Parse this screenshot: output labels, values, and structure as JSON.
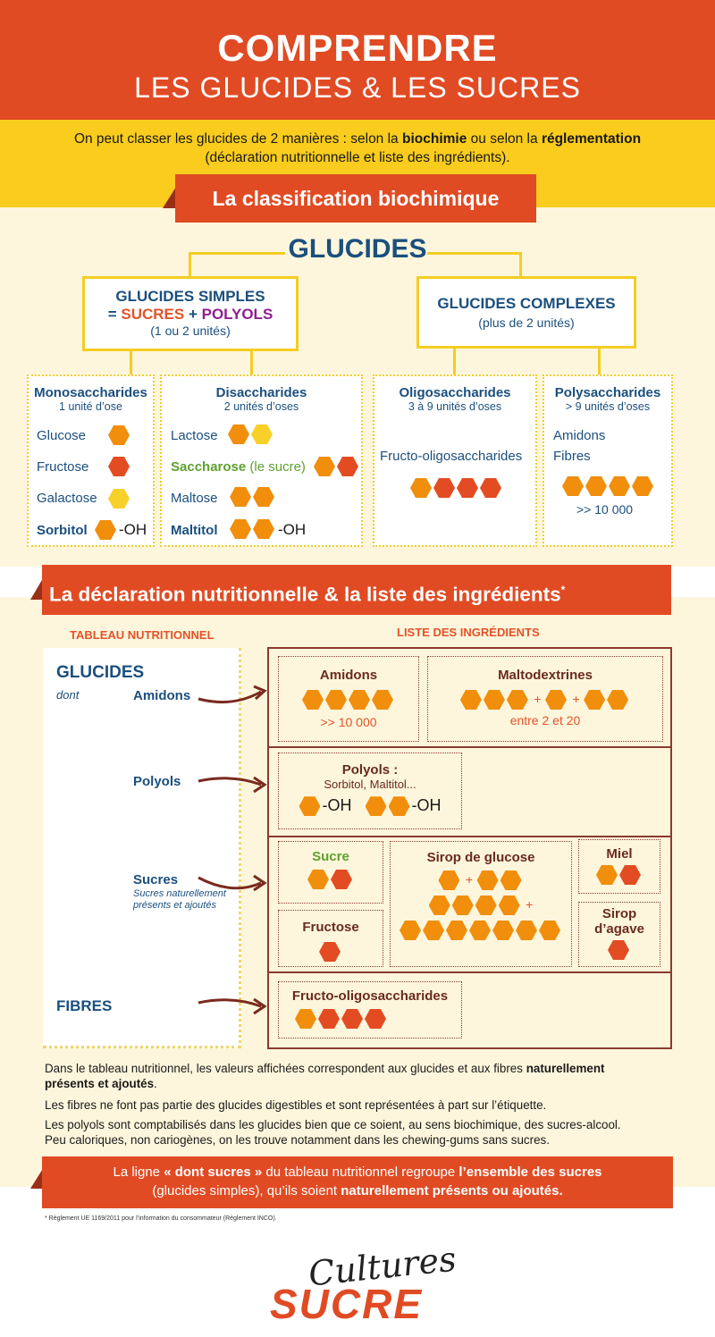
{
  "header": {
    "title": "COMPRENDRE",
    "subtitle": "LES GLUCIDES & LES SUCRES"
  },
  "intro": {
    "line1_pre": "On peut classer les glucides de 2 manières : selon la ",
    "line1_b1": "biochimie",
    "line1_mid": " ou selon la ",
    "line1_b2": "réglementation",
    "line2": "(déclaration nutritionnelle et liste des ingrédients)."
  },
  "section1": {
    "banner": "La classification biochimique",
    "root": "GLUCIDES",
    "simple": {
      "title": "GLUCIDES SIMPLES",
      "eq": "= ",
      "sucres": "SUCRES",
      "plus": " + ",
      "polyols": "POLYOLS",
      "sub": "(1 ou 2 unités)"
    },
    "complex": {
      "title": "GLUCIDES COMPLEXES",
      "sub": "(plus de 2 unités)"
    },
    "mono": {
      "title": "Monosaccharides",
      "sub": "1 unité d’ose",
      "items": [
        "Glucose",
        "Fructose",
        "Galactose",
        "Sorbitol"
      ],
      "oh": "-OH"
    },
    "di": {
      "title": "Disaccharides",
      "sub": "2 unités d’oses",
      "items": [
        "Lactose",
        "Saccharose",
        "Maltose",
        "Maltitol"
      ],
      "saccharose_note": " (le sucre)",
      "oh": "-OH"
    },
    "oligo": {
      "title": "Oligosaccharides",
      "sub": "3 à 9 unités d’oses",
      "items": [
        "Fructo-oligosaccharides"
      ]
    },
    "poly": {
      "title": "Polysaccharides",
      "sub": "> 9 unités d’oses",
      "items": [
        "Amidons",
        "Fibres"
      ],
      "count": ">> 10 000"
    }
  },
  "section2": {
    "banner": "La déclaration nutritionnelle & la liste des ingrédients",
    "banner_star": "*",
    "left_head": "TABLEAU NUTRITIONNEL",
    "right_head": "LISTE DES INGRÉDIENTS",
    "left": {
      "glucides": "GLUCIDES",
      "dont": "dont",
      "amidons": "Amidons",
      "polyols": "Polyols",
      "sucres": "Sucres",
      "sucres_note": "Sucres naturellement présents et ajoutés",
      "fibres": "FIBRES"
    },
    "right": {
      "amidons": {
        "title": "Amidons",
        "count": ">> 10 000"
      },
      "maltodextrines": {
        "title": "Maltodextrines",
        "plus": "+",
        "range": "entre 2 et 20"
      },
      "polyols": {
        "title": "Polyols :",
        "sub": "Sorbitol, Maltitol...",
        "oh": "-OH"
      },
      "sucre": {
        "title": "Sucre"
      },
      "fructose": {
        "title": "Fructose"
      },
      "sirop_glucose": {
        "title": "Sirop de glucose",
        "plus": "+"
      },
      "miel": {
        "title": "Miel"
      },
      "sirop_agave": {
        "title_line1": "Sirop",
        "title_line2": "d’agave"
      },
      "fos": {
        "title": "Fructo-oligosaccharides"
      }
    }
  },
  "paragraphs": {
    "p1_pre": "Dans le tableau nutritionnel, les valeurs affichées correspondent aux glucides et aux fibres ",
    "p1_b1": "naturellement",
    "p1_b2": "présents et ajoutés",
    "p1_end": ".",
    "p2": "Les fibres ne font pas partie des glucides digestibles et sont représentées à part sur l’étiquette.",
    "p3_l1": "Les polyols sont comptabilisés dans les glucides bien que ce soient, au sens biochimique, des sucres-alcool.",
    "p3_l2": "Peu caloriques, non cariogènes, on les trouve notamment dans les chewing-gums sans sucres."
  },
  "bottom_banner": {
    "pre": "La ligne ",
    "b1": "« dont sucres »",
    "mid": " du tableau nutritionnel regroupe ",
    "b2": "l’ensemble des sucres",
    "l2_pre": "(glucides simples), qu’ils soient ",
    "b3": "naturellement présents ou ajoutés."
  },
  "footnote": "* Règlement UE 1169/2011 pour l’information du consommateur (Règlement INCO).",
  "logo": {
    "script": "Cultures",
    "bold": "SUCRE"
  },
  "colors": {
    "red": "#e04b24",
    "yellow": "#f9cc1d",
    "navy": "#1b4f7e",
    "brown": "#6a2a21",
    "cream": "#fdf6dc"
  }
}
